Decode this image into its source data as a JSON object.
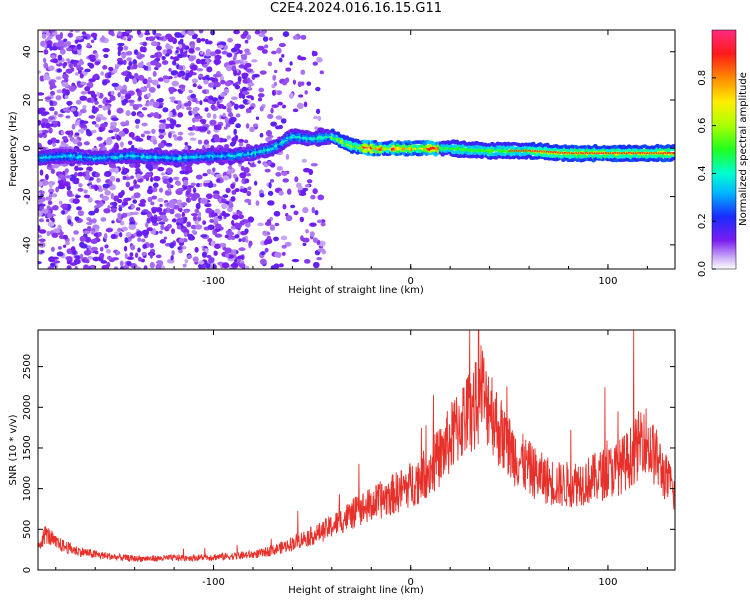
{
  "title": "C2E4.2024.016.16.15.G11",
  "chart_data": [
    {
      "type": "heatmap",
      "xlabel": "Height of straight line (km)",
      "ylabel": "Frequency (Hz)",
      "xlim": [
        -189,
        134
      ],
      "ylim": [
        -50,
        49
      ],
      "xticks": [
        "-100",
        "0",
        "100"
      ],
      "yticks": [
        "-40",
        "-20",
        "0",
        "20",
        "40"
      ],
      "ridge": {
        "x": [
          -189,
          -175,
          -160,
          -140,
          -120,
          -100,
          -90,
          -80,
          -70,
          -60,
          -50,
          -40,
          -30,
          -20,
          -10,
          0,
          20,
          40,
          60,
          80,
          100,
          120,
          134
        ],
        "freq": [
          -4,
          -3,
          -4,
          -3,
          -4,
          -3,
          -3,
          -2,
          0,
          5,
          4,
          5,
          1,
          0,
          0,
          0,
          0,
          -1,
          -1,
          -2,
          -2,
          -2,
          -2
        ]
      },
      "colorbar": {
        "label": "Normalized spectral amplitude",
        "ticks": [
          "0.0",
          "0.2",
          "0.4",
          "0.6",
          "0.8"
        ],
        "range": [
          0,
          1
        ]
      }
    },
    {
      "type": "line",
      "xlabel": "Height of straight line (km)",
      "ylabel": "SNR (10 * v/v)",
      "xlim": [
        -189,
        134
      ],
      "ylim": [
        0,
        2950
      ],
      "xticks": [
        "-100",
        "0",
        "100"
      ],
      "yticks": [
        "0",
        "500",
        "1000",
        "1500",
        "2000",
        "2500"
      ],
      "color": "#e8302a",
      "series": [
        {
          "x": [
            -189,
            -185,
            -180,
            -170,
            -160,
            -150,
            -140,
            -130,
            -120,
            -110,
            -100,
            -90,
            -80,
            -75,
            -70,
            -65,
            -60,
            -55,
            -50,
            -45,
            -40,
            -35,
            -30,
            -25,
            -20,
            -15,
            -10,
            -5,
            0,
            5,
            10,
            15,
            20,
            25,
            28,
            30,
            32,
            34,
            36,
            38,
            40,
            42,
            45,
            50,
            55,
            60,
            65,
            70,
            75,
            80,
            85,
            90,
            95,
            100,
            105,
            110,
            115,
            118,
            120,
            125,
            130,
            134
          ],
          "values": [
            300,
            450,
            330,
            240,
            190,
            160,
            140,
            140,
            150,
            150,
            160,
            170,
            190,
            210,
            240,
            280,
            330,
            380,
            420,
            470,
            540,
            610,
            680,
            750,
            800,
            860,
            920,
            980,
            1050,
            1140,
            1250,
            1400,
            1600,
            1800,
            1900,
            1950,
            2000,
            2050,
            2300,
            2000,
            2100,
            1900,
            1700,
            1500,
            1350,
            1250,
            1150,
            1100,
            1050,
            1050,
            1080,
            1100,
            1150,
            1200,
            1250,
            1350,
            1500,
            1700,
            1550,
            1350,
            1100,
            950
          ]
        }
      ]
    }
  ]
}
